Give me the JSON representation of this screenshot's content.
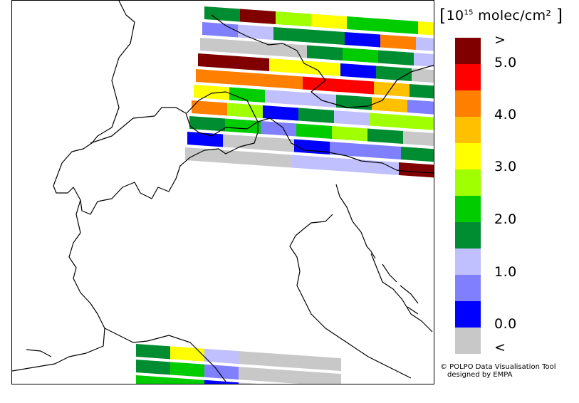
{
  "legend": {
    "title_prefix": "10",
    "title_exponent": "15",
    "title_unit": "molec/cm²",
    "classes": [
      {
        "name": "above-max",
        "color": "#800000"
      },
      {
        "name": "4.5-5.0",
        "color": "#ff0000"
      },
      {
        "name": "4.0-4.5",
        "color": "#ff8000"
      },
      {
        "name": "3.5-4.0",
        "color": "#ffc000"
      },
      {
        "name": "3.0-3.5",
        "color": "#ffff00"
      },
      {
        "name": "2.5-3.0",
        "color": "#a0ff00"
      },
      {
        "name": "2.0-2.5",
        "color": "#00cc00"
      },
      {
        "name": "1.5-2.0",
        "color": "#008c30"
      },
      {
        "name": "1.0-1.5",
        "color": "#c0c0ff"
      },
      {
        "name": "0.5-1.0",
        "color": "#8080ff"
      },
      {
        "name": "0.0-0.5",
        "color": "#0000ff"
      },
      {
        "name": "below-min",
        "color": "#c8c8c8"
      }
    ],
    "tick_labels": [
      ">",
      "5.0",
      "4.0",
      "3.0",
      "2.0",
      "1.0",
      "0.0",
      "<"
    ]
  },
  "credits": {
    "line1": "© POLPO Data Visualisation Tool",
    "line2": "designed by EMPA"
  },
  "map": {
    "region": "Alpine region / northern Italy",
    "pixel_rows_upper": [
      [
        7,
        0,
        5,
        4,
        6,
        6,
        4,
        7
      ],
      [
        9,
        8,
        7,
        7,
        10,
        2,
        8,
        7,
        4
      ],
      [
        11,
        11,
        11,
        7,
        6,
        7,
        8,
        8,
        5
      ],
      [
        0,
        0,
        4,
        4,
        10,
        7,
        11,
        5
      ],
      [
        2,
        2,
        2,
        1,
        1,
        3,
        7,
        11
      ],
      [
        4,
        6,
        8,
        8,
        7,
        3,
        9,
        8,
        5
      ],
      [
        2,
        5,
        10,
        7,
        8,
        5,
        5,
        7,
        9
      ],
      [
        7,
        6,
        9,
        6,
        5,
        7,
        11,
        3,
        3
      ],
      [
        10,
        11,
        11,
        10,
        9,
        9,
        7,
        6,
        6
      ],
      [
        11,
        11,
        11,
        8,
        8,
        8,
        0,
        5,
        5
      ]
    ],
    "pixel_rows_lower": [
      [
        7,
        4,
        8,
        11,
        11,
        11
      ],
      [
        7,
        6,
        9,
        11,
        11,
        11
      ],
      [
        6,
        6,
        10,
        11,
        11,
        10
      ]
    ]
  }
}
